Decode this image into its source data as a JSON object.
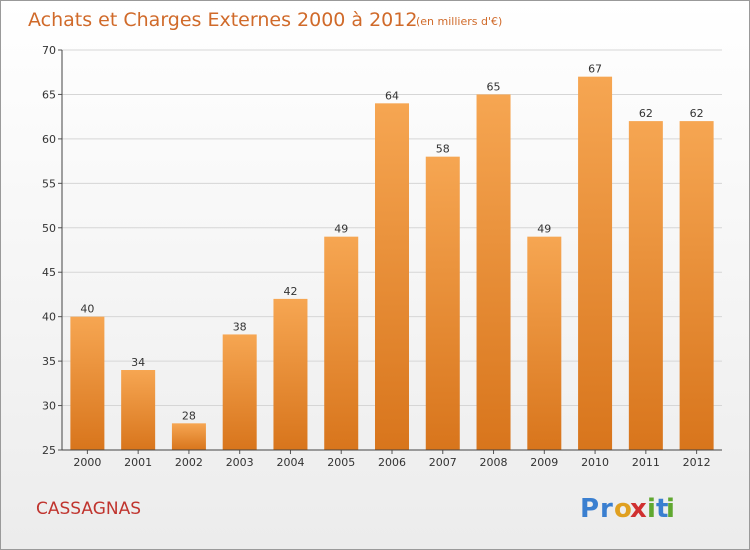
{
  "title": "Achats et Charges Externes 2000 à 2012",
  "subtitle": "(en milliers d'€)",
  "commune": "CASSAGNAS",
  "logo": {
    "letters": [
      "P",
      "r",
      "o",
      "x",
      "i",
      "t",
      "i"
    ],
    "colors": [
      "#3a7fd0",
      "#3a7fd0",
      "#e0a020",
      "#d03030",
      "#60a830",
      "#3a7fd0",
      "#60a830"
    ]
  },
  "colors": {
    "bar_top": "#f6a652",
    "bar_bottom": "#d8751c",
    "grid": "#d6d6d6",
    "accent": "#d06a2a"
  },
  "chart_data": {
    "type": "bar",
    "title": "Achats et Charges Externes 2000 à 2012",
    "subtitle": "(en milliers d'€)",
    "xlabel": "",
    "ylabel": "",
    "categories": [
      "2000",
      "2001",
      "2002",
      "2003",
      "2004",
      "2005",
      "2006",
      "2007",
      "2008",
      "2009",
      "2010",
      "2011",
      "2012"
    ],
    "values": [
      40,
      34,
      28,
      38,
      42,
      49,
      64,
      58,
      65,
      49,
      67,
      62,
      62
    ],
    "ylim": [
      25,
      70
    ],
    "yticks": [
      25,
      30,
      35,
      40,
      45,
      50,
      55,
      60,
      65,
      70
    ],
    "grid": true,
    "legend": "none"
  }
}
